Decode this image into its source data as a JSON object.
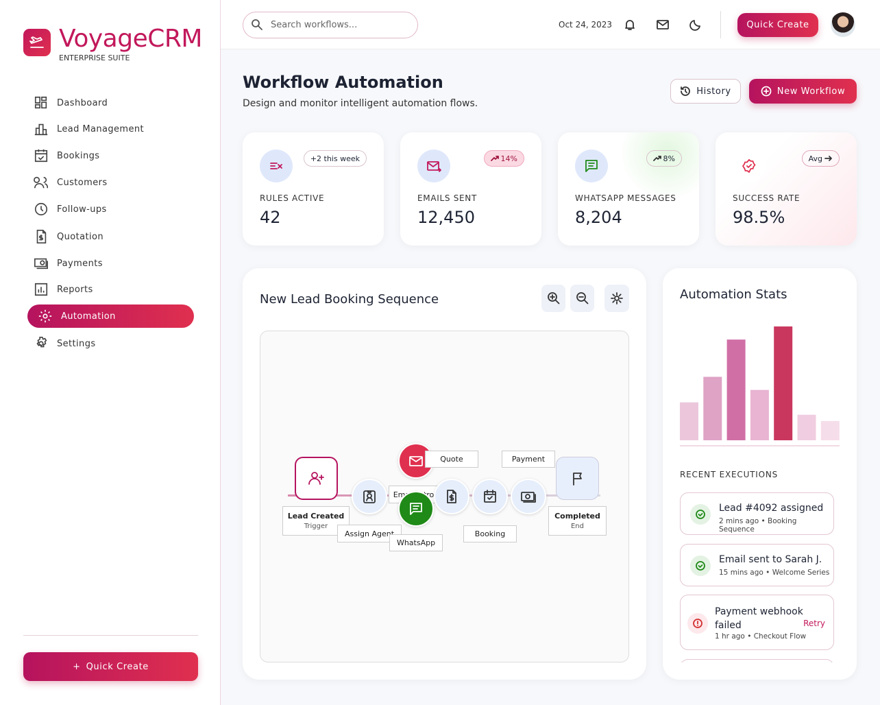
{
  "sidebar": {
    "brand": "VoyageCRM",
    "tagline": "ENTERPRISE SUITE",
    "nav": [
      "Dashboard",
      "Lead Management",
      "Bookings",
      "Customers",
      "Follow-ups",
      "Quotation",
      "Payments",
      "Reports",
      "Automation",
      "Settings"
    ],
    "quick_create": "Quick Create"
  },
  "header": {
    "search_placeholder": "Search workflows...",
    "date": "Oct 24, 2023",
    "quick_create": "Quick Create"
  },
  "page": {
    "title": "Workflow Automation",
    "subtitle": "Design and monitor intelligent automation flows.",
    "history": "History",
    "new_workflow": "New Workflow"
  },
  "cards": [
    {
      "badge": "+2 this week",
      "label": "RULES ACTIVE",
      "value": "42"
    },
    {
      "badge": "14%",
      "label": "EMAILS SENT",
      "value": "12,450"
    },
    {
      "badge": "8%",
      "label": "WHATSAPP MESSAGES",
      "value": "8,204"
    },
    {
      "badge": "Avg",
      "label": "SUCCESS RATE",
      "value": "98.5%"
    }
  ],
  "workflow": {
    "title": "New Lead Booking Sequence",
    "nodes": [
      {
        "label": "Lead Created",
        "sub": "Trigger"
      },
      {
        "label": "Assign Agent"
      },
      {
        "label": "Email Intro"
      },
      {
        "label": "WhatsApp"
      },
      {
        "label": "Quote"
      },
      {
        "label": "Booking"
      },
      {
        "label": "Payment"
      },
      {
        "label": "Completed",
        "sub": "End"
      }
    ]
  },
  "stats": {
    "title": "Automation Stats",
    "chart": {
      "type": "bar",
      "ylim": [
        0,
        170
      ],
      "values": [
        55,
        92,
        146,
        73,
        165,
        37,
        28
      ],
      "colors": [
        "#ecc7dc",
        "#dea3c5",
        "#d06fa6",
        "#e8b4d2",
        "#c9375f",
        "#f0cde0",
        "#f5dde9"
      ]
    },
    "recent_title": "RECENT EXECUTIONS",
    "recent": [
      {
        "title": "Lead #4092 assigned",
        "meta": "2 mins ago • Booking Sequence"
      },
      {
        "title": "Email sent to Sarah J.",
        "meta": "15 mins ago • Welcome Series"
      },
      {
        "title": "Payment webhook failed",
        "meta": "1 hr ago • Checkout Flow",
        "action": "Retry"
      }
    ]
  }
}
